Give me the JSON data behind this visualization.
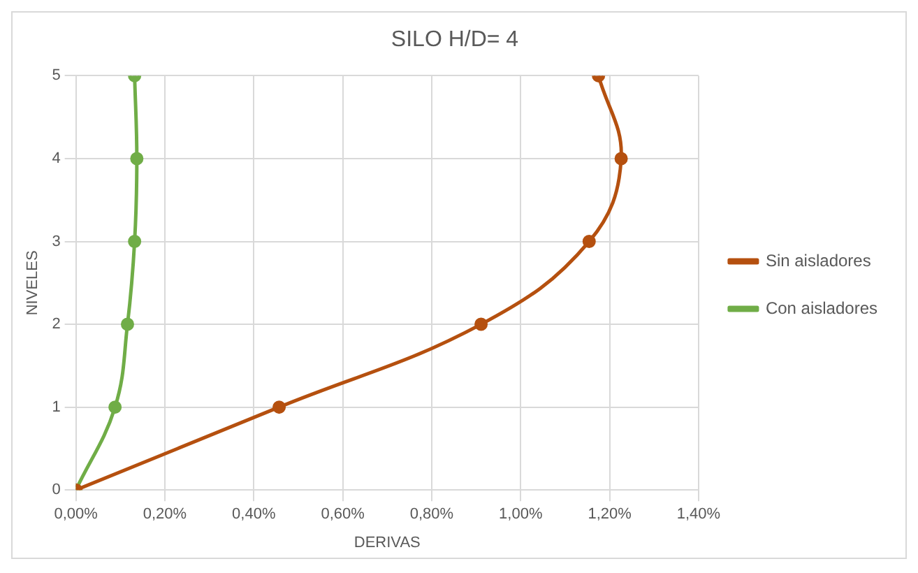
{
  "chart_data": {
    "type": "line",
    "title": "SILO H/D= 4",
    "xlabel": "DERIVAS",
    "ylabel": "NIVELES",
    "series": [
      {
        "name": "Sin aisladores",
        "color": "#b5500f",
        "x": [
          0,
          0.457,
          0.911,
          1.154,
          1.226,
          1.175
        ],
        "values": [
          0,
          1,
          2,
          3,
          4,
          5
        ]
      },
      {
        "name": "Con aisladores",
        "color": "#70ad47",
        "x": [
          0,
          0.088,
          0.116,
          0.132,
          0.137,
          0.132
        ],
        "values": [
          0,
          1,
          2,
          3,
          4,
          5
        ]
      }
    ],
    "xlim": [
      0,
      1.4
    ],
    "xticks": [
      {
        "value": 0,
        "label": "0,00%"
      },
      {
        "value": 0.2,
        "label": "0,20%"
      },
      {
        "value": 0.4,
        "label": "0,40%"
      },
      {
        "value": 0.6,
        "label": "0,60%"
      },
      {
        "value": 0.8,
        "label": "0,80%"
      },
      {
        "value": 1.0,
        "label": "1,00%"
      },
      {
        "value": 1.2,
        "label": "1,20%"
      },
      {
        "value": 1.4,
        "label": "1,40%"
      }
    ],
    "ylim": [
      0,
      5
    ],
    "yticks": [
      0,
      1,
      2,
      3,
      4,
      5
    ],
    "grid": true,
    "legend": "right",
    "marker": "circle",
    "line_style": "solid"
  }
}
